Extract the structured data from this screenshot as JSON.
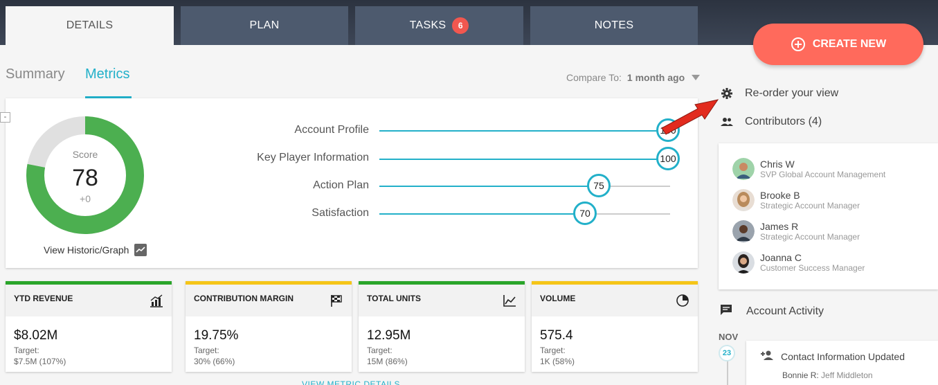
{
  "tabs": [
    {
      "label": "DETAILS",
      "active": true
    },
    {
      "label": "PLAN",
      "active": false
    },
    {
      "label": "TASKS",
      "badge": "6",
      "active": false
    },
    {
      "label": "NOTES",
      "active": false
    }
  ],
  "create_button": {
    "label": "CREATE NEW",
    "color": "#ff6a5c"
  },
  "subtabs": [
    {
      "label": "Summary",
      "active": false
    },
    {
      "label": "Metrics",
      "active": true
    }
  ],
  "compare": {
    "label": "Compare To:",
    "value": "1 month ago"
  },
  "score": {
    "label": "Score",
    "value": "78",
    "delta": "+0",
    "fraction": 0.78,
    "historic_label": "View Historic/Graph",
    "collapse": "-"
  },
  "metrics": [
    {
      "label": "Account Profile",
      "value": "100"
    },
    {
      "label": "Key Player Information",
      "value": "100"
    },
    {
      "label": "Action Plan",
      "value": "75"
    },
    {
      "label": "Satisfaction",
      "value": "70"
    }
  ],
  "kpis": [
    {
      "title": "YTD REVENUE",
      "value": "$8.02M",
      "target_label": "Target:",
      "target": "$7.5M (107%)",
      "bar_color": "#2aa52a",
      "icon": "bar-chart-icon"
    },
    {
      "title": "CONTRIBUTION MARGIN",
      "value": "19.75%",
      "target_label": "Target:",
      "target": "30% (66%)",
      "bar_color": "#f5c518",
      "icon": "flag-icon"
    },
    {
      "title": "TOTAL UNITS",
      "value": "12.95M",
      "target_label": "Target:",
      "target": "15M (86%)",
      "bar_color": "#2aa52a",
      "icon": "line-chart-icon"
    },
    {
      "title": "VOLUME",
      "value": "575.4",
      "target_label": "Target:",
      "target": "1K (58%)",
      "bar_color": "#f5c518",
      "icon": "pie-chart-icon"
    }
  ],
  "view_details": "VIEW METRIC DETAILS",
  "sidebar": {
    "reorder": "Re-order your view",
    "contributors": "Contributors (4)",
    "people": [
      {
        "name": "Chris W",
        "role": "SVP Global Account Management"
      },
      {
        "name": "Brooke B",
        "role": "Strategic Account Manager"
      },
      {
        "name": "James R",
        "role": "Strategic Account Manager"
      },
      {
        "name": "Joanna C",
        "role": "Customer Success Manager"
      }
    ],
    "activity": "Account Activity",
    "month": "NOV",
    "day": "23",
    "event_title": "Contact Information Updated",
    "event_user": "Bonnie R:",
    "event_detail": "Jeff Middleton"
  },
  "colors": {
    "accent": "#22b0c9",
    "score_green": "#4caf50",
    "badge": "#f2574f"
  }
}
